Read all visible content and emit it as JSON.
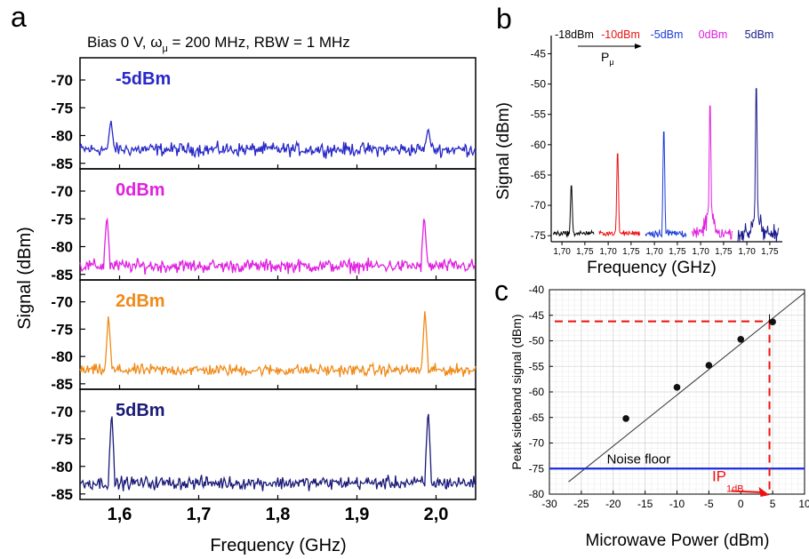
{
  "panel_labels": {
    "a": "a",
    "b": "b",
    "c": "c"
  },
  "colors": {
    "m5": "#2828c8",
    "p0": "#e020e0",
    "p2": "#f08a18",
    "p5": "#1a1a78",
    "black": "#000000",
    "red": "#ee1111",
    "blue": "#1a3cd8",
    "magenta": "#e020e0",
    "navy": "#1a1a8c",
    "dot": "#111111",
    "dash": "#ee1111",
    "noise": "#1a2ae0"
  },
  "chart_data": [
    {
      "id": "a",
      "type": "line",
      "title": "Bias 0 V, ω",
      "title_sub": "μ",
      "title_rest": " = 200 MHz, RBW = 1 MHz",
      "xlabel": "Frequency (GHz)",
      "ylabel": "Signal (dBm)",
      "xlim": [
        1.55,
        2.05
      ],
      "ylim": [
        -86,
        -66
      ],
      "x_ticks": [
        "1,6",
        "1,7",
        "1,8",
        "1,9",
        "2,0"
      ],
      "x_tick_values": [
        1.6,
        1.7,
        1.8,
        1.9,
        2.0
      ],
      "y_ticks": [
        "-70",
        "-75",
        "-80",
        "-85"
      ],
      "y_tick_values": [
        -70,
        -75,
        -80,
        -85
      ],
      "series": [
        {
          "name": "-5dBm",
          "color_key": "m5",
          "baseline": -82.5,
          "noise": 0.9,
          "peaks": [
            {
              "x": 1.589,
              "y": -77.0
            },
            {
              "x": 1.99,
              "y": -78.5
            }
          ]
        },
        {
          "name": "0dBm",
          "color_key": "p0",
          "baseline": -83.5,
          "noise": 0.9,
          "peaks": [
            {
              "x": 1.584,
              "y": -74.0
            },
            {
              "x": 1.985,
              "y": -74.0
            }
          ]
        },
        {
          "name": "2dBm",
          "color_key": "p2",
          "baseline": -82.5,
          "noise": 0.8,
          "peaks": [
            {
              "x": 1.586,
              "y": -72.0
            },
            {
              "x": 1.986,
              "y": -71.0
            }
          ]
        },
        {
          "name": "5dBm",
          "color_key": "p5",
          "baseline": -83.0,
          "noise": 0.9,
          "peaks": [
            {
              "x": 1.59,
              "y": -69.5
            },
            {
              "x": 1.99,
              "y": -69.0
            }
          ]
        }
      ]
    },
    {
      "id": "b",
      "type": "line",
      "xlabel": "Frequency (GHz)",
      "ylabel": "Signal (dBm)",
      "ylim": [
        -76,
        -42
      ],
      "y_ticks": [
        "-45",
        "-50",
        "-55",
        "-60",
        "-65",
        "-70",
        "-75"
      ],
      "y_tick_values": [
        -45,
        -50,
        -55,
        -60,
        -65,
        -70,
        -75
      ],
      "x_tick_labels": [
        "1,70",
        "1,75",
        "1,70",
        "1,75",
        "1,70",
        "1,75",
        "1,70",
        "1,75",
        "1,70",
        "1,75"
      ],
      "arrow_label": "P",
      "arrow_label_sub": "μ",
      "series": [
        {
          "name": "-18dBm",
          "color_key": "black",
          "peak": -65.3,
          "noise": 0.6
        },
        {
          "name": "-10dBm",
          "color_key": "red",
          "peak": -59.0,
          "noise": 0.6
        },
        {
          "name": "-5dBm",
          "color_key": "blue",
          "peak": -54.7,
          "noise": 1.0
        },
        {
          "name": "0dBm",
          "color_key": "magenta",
          "peak": -49.6,
          "noise": 1.2
        },
        {
          "name": "5dBm",
          "color_key": "navy",
          "peak": -46.2,
          "noise": 2.0
        }
      ]
    },
    {
      "id": "c",
      "type": "scatter",
      "xlabel": "Microwave Power (dBm)",
      "ylabel": "Peak sideband signal (dBm)",
      "xlim": [
        -30,
        10
      ],
      "ylim": [
        -80,
        -40
      ],
      "x_ticks": [
        "-30",
        "-25",
        "-20",
        "-15",
        "-10",
        "-5",
        "0",
        "5",
        "10"
      ],
      "x_tick_values": [
        -30,
        -25,
        -20,
        -15,
        -10,
        -5,
        0,
        5,
        10
      ],
      "y_ticks": [
        "-40",
        "-45",
        "-50",
        "-55",
        "-60",
        "-65",
        "-70",
        "-75",
        "-80"
      ],
      "y_tick_values": [
        -40,
        -45,
        -50,
        -55,
        -60,
        -65,
        -70,
        -75,
        -80
      ],
      "grid": true,
      "points": [
        {
          "x": -18,
          "y": -65.2
        },
        {
          "x": -10,
          "y": -59.1
        },
        {
          "x": -5,
          "y": -54.8
        },
        {
          "x": 0,
          "y": -49.7
        },
        {
          "x": 5,
          "y": -46.3
        }
      ],
      "fit_line": {
        "x": [
          -27,
          10
        ],
        "y": [
          -77.6,
          -40.6
        ]
      },
      "noise_floor": {
        "y": -75,
        "label": "Noise floor"
      },
      "ip1db": {
        "x": 4.5,
        "y": -46.2,
        "label": "IP",
        "label_sub": "1dB"
      }
    }
  ]
}
